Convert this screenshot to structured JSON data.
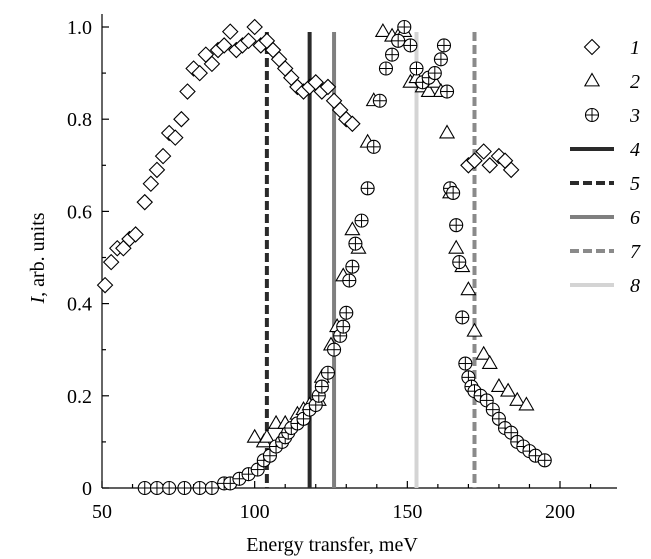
{
  "chart_data": {
    "type": "scatter",
    "xlabel": "Energy transfer, meV",
    "ylabel_italic": "I",
    "ylabel_rest": ", arb. units",
    "xlim": [
      50,
      218
    ],
    "ylim": [
      0,
      1.03
    ],
    "xticks": [
      50,
      100,
      150,
      200
    ],
    "yticks": [
      0,
      0.2,
      0.4,
      0.6,
      0.8,
      1.0
    ],
    "ytick_labels": [
      "0",
      "0.2",
      "0.4",
      "0.6",
      "0.8",
      "1.0"
    ],
    "grid": false,
    "legend_position": "right",
    "series": [
      {
        "name": "1",
        "marker": "diamond",
        "points": [
          [
            51,
            0.44
          ],
          [
            53,
            0.49
          ],
          [
            55,
            0.52
          ],
          [
            57,
            0.52
          ],
          [
            59,
            0.54
          ],
          [
            61,
            0.55
          ],
          [
            64,
            0.62
          ],
          [
            66,
            0.66
          ],
          [
            68,
            0.69
          ],
          [
            70,
            0.72
          ],
          [
            72,
            0.77
          ],
          [
            74,
            0.76
          ],
          [
            76,
            0.8
          ],
          [
            78,
            0.86
          ],
          [
            80,
            0.91
          ],
          [
            82,
            0.9
          ],
          [
            84,
            0.94
          ],
          [
            86,
            0.92
          ],
          [
            88,
            0.95
          ],
          [
            90,
            0.96
          ],
          [
            92,
            0.99
          ],
          [
            94,
            0.95
          ],
          [
            96,
            0.96
          ],
          [
            98,
            0.97
          ],
          [
            100,
            1.0
          ],
          [
            102,
            0.96
          ],
          [
            104,
            0.97
          ],
          [
            106,
            0.95
          ],
          [
            108,
            0.93
          ],
          [
            110,
            0.91
          ],
          [
            112,
            0.89
          ],
          [
            114,
            0.87
          ],
          [
            116,
            0.86
          ],
          [
            118,
            0.87
          ],
          [
            120,
            0.88
          ],
          [
            122,
            0.86
          ],
          [
            124,
            0.87
          ],
          [
            126,
            0.84
          ],
          [
            128,
            0.82
          ],
          [
            130,
            0.8
          ],
          [
            132,
            0.79
          ],
          [
            170,
            0.7
          ],
          [
            172,
            0.71
          ],
          [
            175,
            0.73
          ],
          [
            177,
            0.7
          ],
          [
            180,
            0.72
          ],
          [
            182,
            0.71
          ],
          [
            184,
            0.69
          ]
        ]
      },
      {
        "name": "2",
        "marker": "triangle",
        "points": [
          [
            100,
            0.11
          ],
          [
            103,
            0.1
          ],
          [
            104,
            0.11
          ],
          [
            107,
            0.14
          ],
          [
            110,
            0.14
          ],
          [
            114,
            0.16
          ],
          [
            116,
            0.17
          ],
          [
            118,
            0.18
          ],
          [
            121,
            0.19
          ],
          [
            122,
            0.24
          ],
          [
            125,
            0.31
          ],
          [
            127,
            0.35
          ],
          [
            129,
            0.46
          ],
          [
            132,
            0.56
          ],
          [
            134,
            0.52
          ],
          [
            137,
            0.75
          ],
          [
            139,
            0.84
          ],
          [
            142,
            0.99
          ],
          [
            145,
            0.98
          ],
          [
            147,
            0.98
          ],
          [
            149,
            0.99
          ],
          [
            151,
            0.88
          ],
          [
            153,
            0.89
          ],
          [
            155,
            0.87
          ],
          [
            157,
            0.86
          ],
          [
            159,
            0.88
          ],
          [
            161,
            0.86
          ],
          [
            163,
            0.77
          ],
          [
            164,
            0.64
          ],
          [
            166,
            0.52
          ],
          [
            168,
            0.48
          ],
          [
            170,
            0.43
          ],
          [
            172,
            0.34
          ],
          [
            175,
            0.29
          ],
          [
            177,
            0.27
          ],
          [
            180,
            0.22
          ],
          [
            183,
            0.21
          ],
          [
            186,
            0.19
          ],
          [
            189,
            0.18
          ]
        ]
      },
      {
        "name": "3",
        "marker": "circle-plus",
        "points": [
          [
            64,
            0
          ],
          [
            68,
            0
          ],
          [
            72,
            0
          ],
          [
            77,
            0
          ],
          [
            82,
            0
          ],
          [
            86,
            0
          ],
          [
            90,
            0.01
          ],
          [
            92,
            0.01
          ],
          [
            95,
            0.02
          ],
          [
            98,
            0.03
          ],
          [
            101,
            0.04
          ],
          [
            103,
            0.06
          ],
          [
            105,
            0.07
          ],
          [
            107,
            0.09
          ],
          [
            109,
            0.1
          ],
          [
            110,
            0.11
          ],
          [
            111,
            0.12
          ],
          [
            112,
            0.13
          ],
          [
            114,
            0.14
          ],
          [
            116,
            0.15
          ],
          [
            118,
            0.17
          ],
          [
            120,
            0.18
          ],
          [
            121,
            0.2
          ],
          [
            122,
            0.22
          ],
          [
            124,
            0.25
          ],
          [
            126,
            0.3
          ],
          [
            128,
            0.33
          ],
          [
            129,
            0.35
          ],
          [
            130,
            0.38
          ],
          [
            131,
            0.45
          ],
          [
            132,
            0.48
          ],
          [
            133,
            0.53
          ],
          [
            135,
            0.58
          ],
          [
            137,
            0.65
          ],
          [
            139,
            0.74
          ],
          [
            141,
            0.84
          ],
          [
            143,
            0.91
          ],
          [
            145,
            0.94
          ],
          [
            147,
            0.97
          ],
          [
            149,
            1.0
          ],
          [
            151,
            0.96
          ],
          [
            153,
            0.91
          ],
          [
            155,
            0.88
          ],
          [
            157,
            0.89
          ],
          [
            159,
            0.9
          ],
          [
            161,
            0.93
          ],
          [
            162,
            0.96
          ],
          [
            163,
            0.86
          ],
          [
            164,
            0.65
          ],
          [
            165,
            0.64
          ],
          [
            166,
            0.57
          ],
          [
            167,
            0.49
          ],
          [
            168,
            0.37
          ],
          [
            169,
            0.27
          ],
          [
            170,
            0.24
          ],
          [
            171,
            0.22
          ],
          [
            172,
            0.21
          ],
          [
            174,
            0.2
          ],
          [
            176,
            0.19
          ],
          [
            178,
            0.17
          ],
          [
            180,
            0.15
          ],
          [
            182,
            0.13
          ],
          [
            184,
            0.12
          ],
          [
            186,
            0.1
          ],
          [
            188,
            0.09
          ],
          [
            190,
            0.08
          ],
          [
            192,
            0.07
          ],
          [
            195,
            0.06
          ]
        ]
      },
      {
        "name": "4",
        "type": "vline",
        "x": 118,
        "style": "solid",
        "color": "#2a2a2a"
      },
      {
        "name": "5",
        "type": "vline",
        "x": 104,
        "style": "dashed",
        "color": "#2a2a2a"
      },
      {
        "name": "6",
        "type": "vline",
        "x": 126,
        "style": "solid",
        "color": "#7f7f7f"
      },
      {
        "name": "7",
        "type": "vline",
        "x": 172,
        "style": "dashed",
        "color": "#8a8a8a"
      },
      {
        "name": "8",
        "type": "vline",
        "x": 153,
        "style": "solid",
        "color": "#d4d4d4"
      }
    ]
  }
}
